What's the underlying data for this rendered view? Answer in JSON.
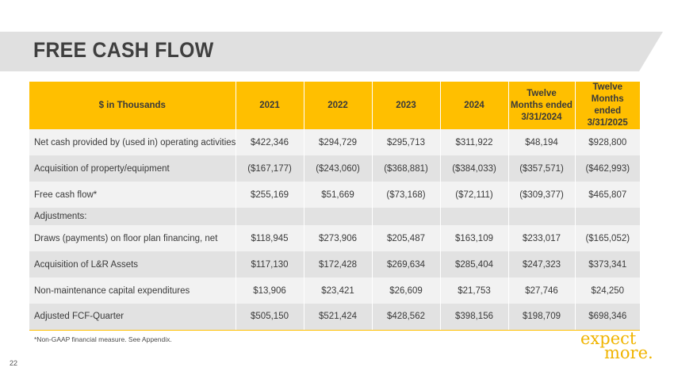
{
  "title": "FREE CASH FLOW",
  "table": {
    "headers": [
      "$ in Thousands",
      "2021",
      "2022",
      "2023",
      "2024",
      "Twelve Months ended 3/31/2024",
      "Twelve Months ended 3/31/2025"
    ],
    "rows": [
      [
        "Net cash provided by (used in) operating activities",
        "$422,346",
        "$294,729",
        "$295,713",
        "$311,922",
        "$48,194",
        "$928,800"
      ],
      [
        "Acquisition of property/equipment",
        "($167,177)",
        "($243,060)",
        "($368,881)",
        "($384,033)",
        "($357,571)",
        "($462,993)"
      ],
      [
        "Free cash flow*",
        "$255,169",
        "$51,669",
        "($73,168)",
        "($72,111)",
        "($309,377)",
        "$465,807"
      ],
      [
        "Adjustments:",
        "",
        "",
        "",
        "",
        "",
        ""
      ],
      [
        "Draws (payments) on floor plan financing, net",
        "$118,945",
        "$273,906",
        "$205,487",
        "$163,109",
        "$233,017",
        "($165,052)"
      ],
      [
        "Acquisition of L&R Assets",
        "$117,130",
        "$172,428",
        "$269,634",
        "$285,404",
        "$247,323",
        "$373,341"
      ],
      [
        "Non-maintenance capital expenditures",
        "$13,906",
        "$23,421",
        "$26,609",
        "$21,753",
        "$27,746",
        "$24,250"
      ],
      [
        "Adjusted FCF-Quarter",
        "$505,150",
        "$521,424",
        "$428,562",
        "$398,156",
        "$198,709",
        "$698,346"
      ]
    ]
  },
  "footnote": "*Non-GAAP financial measure.  See Appendix.",
  "page_number": "22",
  "logo": {
    "line1": "expect",
    "line2": "more."
  },
  "colors": {
    "accent": "#ffbf00",
    "banner": "#e0e0e0",
    "logo": "#f0b400"
  }
}
